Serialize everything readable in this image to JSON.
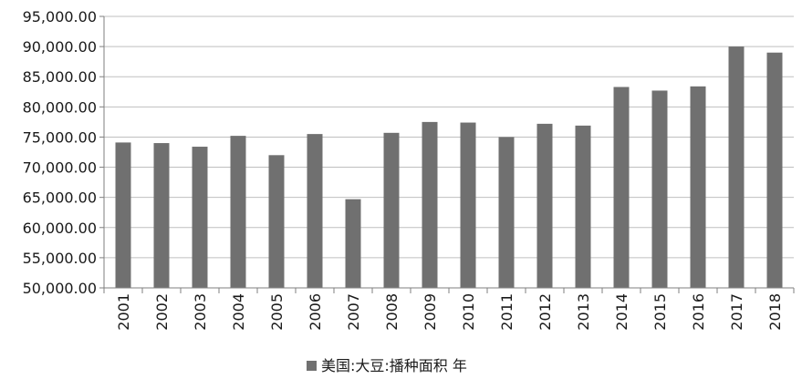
{
  "chart_data": {
    "type": "bar",
    "categories": [
      "2001",
      "2002",
      "2003",
      "2004",
      "2005",
      "2006",
      "2007",
      "2008",
      "2009",
      "2010",
      "2011",
      "2012",
      "2013",
      "2014",
      "2015",
      "2016",
      "2017",
      "2018"
    ],
    "series": [
      {
        "name": "美国:大豆:播种面积 年",
        "values": [
          74100,
          74000,
          73400,
          75200,
          72000,
          75500,
          64700,
          75700,
          77500,
          77400,
          75000,
          77200,
          76900,
          83300,
          82700,
          83400,
          90000,
          89000
        ],
        "color": "#707070"
      }
    ],
    "y_tick_labels": [
      "50,000.00",
      "55,000.00",
      "60,000.00",
      "65,000.00",
      "70,000.00",
      "75,000.00",
      "80,000.00",
      "85,000.00",
      "90,000.00",
      "95,000.00"
    ],
    "ylim": [
      50000,
      95000
    ],
    "y_step": 5000,
    "grid": true,
    "x_label_rotation": "vertical",
    "legend_position": "bottom-center",
    "axis_color": "#7f7f7f",
    "grid_color": "#bfbfbf"
  }
}
